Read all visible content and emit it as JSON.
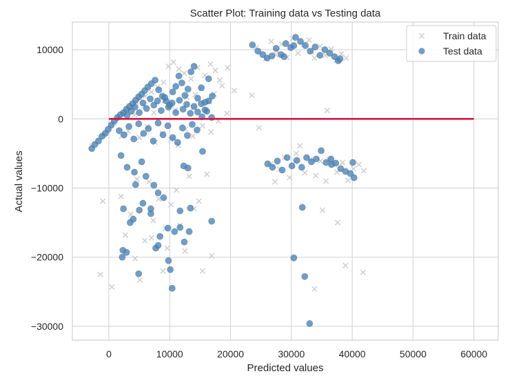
{
  "chart_data": {
    "type": "scatter",
    "title": "Scatter Plot: Training data vs Testing data",
    "xlabel": "Predicted values",
    "ylabel": "Actual values",
    "xlim": [
      -6000,
      64000
    ],
    "ylim": [
      -32000,
      14000
    ],
    "x_ticks": [
      0,
      10000,
      20000,
      30000,
      40000,
      50000,
      60000
    ],
    "y_ticks": [
      -30000,
      -20000,
      -10000,
      0,
      10000
    ],
    "x_tick_labels": [
      "0",
      "10000",
      "20000",
      "30000",
      "40000",
      "50000",
      "60000"
    ],
    "y_tick_labels": [
      "−30000",
      "−20000",
      "−10000",
      "0",
      "10000"
    ],
    "grid": true,
    "legend_position": "top-right",
    "reference_line": {
      "y": 0,
      "x_start": 0,
      "x_end": 60000,
      "color": "#dc143c"
    },
    "series": [
      {
        "name": "Train data",
        "marker": "x",
        "color": "#cccccc",
        "points": [
          [
            -2800,
            -3900
          ],
          [
            -1500,
            -2700
          ],
          [
            -300,
            -1800
          ],
          [
            800,
            -600
          ],
          [
            1500,
            200
          ],
          [
            2200,
            700
          ],
          [
            3000,
            1200
          ],
          [
            3800,
            1700
          ],
          [
            4500,
            2400
          ],
          [
            5200,
            2900
          ],
          [
            6000,
            3300
          ],
          [
            7000,
            3900
          ],
          [
            8000,
            4600
          ],
          [
            9000,
            5300
          ],
          [
            9800,
            7600
          ],
          [
            10600,
            8200
          ],
          [
            11500,
            7200
          ],
          [
            12400,
            6600
          ],
          [
            13500,
            5800
          ],
          [
            14600,
            7400
          ],
          [
            15800,
            6300
          ],
          [
            16700,
            7900
          ],
          [
            17500,
            7000
          ],
          [
            18200,
            5600
          ],
          [
            19500,
            7400
          ],
          [
            20600,
            4100
          ],
          [
            3200,
            -1800
          ],
          [
            5000,
            -2700
          ],
          [
            6300,
            -1100
          ],
          [
            7600,
            -3400
          ],
          [
            8800,
            -2100
          ],
          [
            10200,
            -3000
          ],
          [
            11400,
            -3800
          ],
          [
            12600,
            -1500
          ],
          [
            13800,
            -2500
          ],
          [
            15400,
            -1000
          ],
          [
            16800,
            -1900
          ],
          [
            18000,
            -300
          ],
          [
            19400,
            800
          ],
          [
            14200,
            3500
          ],
          [
            16500,
            2500
          ],
          [
            18600,
            4800
          ],
          [
            2100,
            -2500
          ],
          [
            4200,
            600
          ],
          [
            5800,
            1900
          ],
          [
            7400,
            900
          ],
          [
            9100,
            2600
          ],
          [
            10900,
            1300
          ],
          [
            12800,
            3100
          ],
          [
            13900,
            1600
          ],
          [
            15200,
            4400
          ],
          [
            17300,
            3600
          ],
          [
            -1000,
            -11900
          ],
          [
            -1400,
            -22500
          ],
          [
            500,
            -24300
          ],
          [
            2000,
            -11200
          ],
          [
            2700,
            -16800
          ],
          [
            3600,
            -13800
          ],
          [
            4300,
            -20200
          ],
          [
            5100,
            -23300
          ],
          [
            5900,
            -17600
          ],
          [
            6600,
            -9100
          ],
          [
            7300,
            -14700
          ],
          [
            8200,
            -11600
          ],
          [
            8900,
            -22000
          ],
          [
            9600,
            -18700
          ],
          [
            10200,
            -12400
          ],
          [
            11100,
            -10300
          ],
          [
            11700,
            -15400
          ],
          [
            12500,
            -19100
          ],
          [
            13200,
            -8300
          ],
          [
            14000,
            -13000
          ],
          [
            14800,
            -11900
          ],
          [
            15400,
            -22000
          ],
          [
            16100,
            -8000
          ],
          [
            16900,
            -19800
          ],
          [
            9300,
            -15900
          ],
          [
            4600,
            -8700
          ],
          [
            7000,
            -17200
          ],
          [
            23500,
            3400
          ],
          [
            24700,
            -1300
          ],
          [
            24200,
            10300
          ],
          [
            25800,
            8700
          ],
          [
            26700,
            11200
          ],
          [
            27600,
            9900
          ],
          [
            28400,
            10800
          ],
          [
            29300,
            8900
          ],
          [
            30200,
            11600
          ],
          [
            31100,
            9500
          ],
          [
            32000,
            10800
          ],
          [
            32900,
            11400
          ],
          [
            33800,
            8800
          ],
          [
            34700,
            10500
          ],
          [
            35600,
            9200
          ],
          [
            36500,
            10100
          ],
          [
            37400,
            8500
          ],
          [
            38200,
            9400
          ],
          [
            39000,
            8800
          ],
          [
            27400,
            9300
          ],
          [
            33300,
            9700
          ],
          [
            35900,
            1200
          ],
          [
            26600,
            -6500
          ],
          [
            27300,
            -9100
          ],
          [
            28100,
            -7300
          ],
          [
            28900,
            -5600
          ],
          [
            29700,
            -8500
          ],
          [
            30600,
            -6200
          ],
          [
            31400,
            -3900
          ],
          [
            32200,
            -7800
          ],
          [
            33100,
            -5900
          ],
          [
            34000,
            -8200
          ],
          [
            34800,
            -6100
          ],
          [
            35700,
            -9000
          ],
          [
            36600,
            -6400
          ],
          [
            37500,
            -7700
          ],
          [
            38400,
            -6300
          ],
          [
            39300,
            -8900
          ],
          [
            40200,
            -7200
          ],
          [
            41100,
            -6600
          ],
          [
            41900,
            -7500
          ],
          [
            35100,
            -13200
          ],
          [
            37600,
            -15000
          ],
          [
            38900,
            -21200
          ],
          [
            41800,
            -22200
          ],
          [
            33800,
            -24600
          ],
          [
            30800,
            -5000
          ],
          [
            36200,
            -5900
          ]
        ]
      },
      {
        "name": "Test data",
        "marker": "o",
        "color": "#4c82b4",
        "points": [
          [
            -2800,
            -4300
          ],
          [
            -2300,
            -3700
          ],
          [
            -1700,
            -3200
          ],
          [
            -1100,
            -2500
          ],
          [
            -600,
            -2100
          ],
          [
            -100,
            -1500
          ],
          [
            400,
            -900
          ],
          [
            900,
            -300
          ],
          [
            1400,
            200
          ],
          [
            1900,
            600
          ],
          [
            2400,
            900
          ],
          [
            2900,
            1400
          ],
          [
            3400,
            1800
          ],
          [
            3900,
            2200
          ],
          [
            4400,
            2700
          ],
          [
            4900,
            3200
          ],
          [
            5400,
            3600
          ],
          [
            5900,
            4100
          ],
          [
            6400,
            4600
          ],
          [
            7000,
            5100
          ],
          [
            7600,
            5600
          ],
          [
            8200,
            4200
          ],
          [
            8800,
            3300
          ],
          [
            9400,
            2600
          ],
          [
            10000,
            2000
          ],
          [
            10500,
            3900
          ],
          [
            11000,
            4700
          ],
          [
            11500,
            6200
          ],
          [
            12000,
            5200
          ],
          [
            12500,
            3400
          ],
          [
            13000,
            4300
          ],
          [
            13500,
            6800
          ],
          [
            14000,
            7600
          ],
          [
            14600,
            3000
          ],
          [
            15200,
            4500
          ],
          [
            15800,
            2400
          ],
          [
            16400,
            5800
          ],
          [
            17000,
            3300
          ],
          [
            1700,
            -1700
          ],
          [
            2500,
            -2300
          ],
          [
            3300,
            -1100
          ],
          [
            4100,
            -2900
          ],
          [
            4900,
            -700
          ],
          [
            5700,
            -2100
          ],
          [
            6500,
            -1400
          ],
          [
            7300,
            -3200
          ],
          [
            8100,
            -600
          ],
          [
            8900,
            -2300
          ],
          [
            9700,
            -1000
          ],
          [
            10500,
            -2700
          ],
          [
            11300,
            -3400
          ],
          [
            12100,
            -1300
          ],
          [
            12900,
            -2400
          ],
          [
            13700,
            -800
          ],
          [
            14500,
            -1600
          ],
          [
            15300,
            300
          ],
          [
            16100,
            1100
          ],
          [
            16900,
            200
          ],
          [
            3000,
            500
          ],
          [
            3700,
            1100
          ],
          [
            4300,
            1700
          ],
          [
            5000,
            900
          ],
          [
            5600,
            2300
          ],
          [
            6200,
            1500
          ],
          [
            6800,
            2900
          ],
          [
            7400,
            2000
          ],
          [
            8000,
            2600
          ],
          [
            8600,
            1200
          ],
          [
            9200,
            3100
          ],
          [
            9800,
            1700
          ],
          [
            10400,
            2300
          ],
          [
            11000,
            900
          ],
          [
            11600,
            2700
          ],
          [
            12200,
            1400
          ],
          [
            12800,
            2100
          ],
          [
            13400,
            800
          ],
          [
            14000,
            1800
          ],
          [
            14600,
            1000
          ],
          [
            15200,
            2200
          ],
          [
            15800,
            1300
          ],
          [
            16400,
            2600
          ],
          [
            2000,
            -5300
          ],
          [
            3000,
            -7000
          ],
          [
            4200,
            -7700
          ],
          [
            5400,
            -6200
          ],
          [
            2400,
            -13000
          ],
          [
            4000,
            -14500
          ],
          [
            3500,
            -15000
          ],
          [
            5000,
            -13200
          ],
          [
            5600,
            -12200
          ],
          [
            7400,
            -9600
          ],
          [
            8100,
            -10700
          ],
          [
            6900,
            -13700
          ],
          [
            9000,
            -11400
          ],
          [
            8400,
            -17000
          ],
          [
            9700,
            -15800
          ],
          [
            10800,
            -16300
          ],
          [
            11700,
            -13300
          ],
          [
            12300,
            -6800
          ],
          [
            13400,
            -12900
          ],
          [
            15400,
            -4700
          ],
          [
            13000,
            -7100
          ],
          [
            16900,
            -14800
          ],
          [
            6100,
            -8300
          ],
          [
            4400,
            -9500
          ],
          [
            2300,
            -19000
          ],
          [
            2900,
            -19300
          ],
          [
            2200,
            -20000
          ],
          [
            4900,
            -22400
          ],
          [
            7700,
            -18700
          ],
          [
            8100,
            -18300
          ],
          [
            9800,
            -20500
          ],
          [
            10100,
            -21800
          ],
          [
            10400,
            -24500
          ],
          [
            12400,
            -17800
          ],
          [
            11700,
            -15700
          ],
          [
            13200,
            -16300
          ],
          [
            6900,
            -13000
          ],
          [
            23600,
            10700
          ],
          [
            24500,
            9800
          ],
          [
            25300,
            9300
          ],
          [
            26000,
            8800
          ],
          [
            26800,
            9100
          ],
          [
            27500,
            10200
          ],
          [
            28300,
            9300
          ],
          [
            29100,
            10900
          ],
          [
            29900,
            10300
          ],
          [
            30700,
            11800
          ],
          [
            31500,
            11200
          ],
          [
            32300,
            10600
          ],
          [
            33100,
            9800
          ],
          [
            33900,
            10400
          ],
          [
            34700,
            9200
          ],
          [
            35500,
            10000
          ],
          [
            36300,
            9500
          ],
          [
            37100,
            9000
          ],
          [
            37700,
            8400
          ],
          [
            38000,
            8700
          ],
          [
            28800,
            9000
          ],
          [
            30400,
            10600
          ],
          [
            26100,
            -6500
          ],
          [
            26900,
            -7000
          ],
          [
            27700,
            -6100
          ],
          [
            28500,
            -7400
          ],
          [
            29300,
            -5600
          ],
          [
            30100,
            -6800
          ],
          [
            30900,
            -6000
          ],
          [
            31700,
            -7000
          ],
          [
            32500,
            -5600
          ],
          [
            33300,
            -6200
          ],
          [
            34100,
            -5800
          ],
          [
            34900,
            -4600
          ],
          [
            35700,
            -6300
          ],
          [
            36500,
            -5800
          ],
          [
            37300,
            -6400
          ],
          [
            38100,
            -7200
          ],
          [
            38900,
            -7600
          ],
          [
            39700,
            -7900
          ],
          [
            40300,
            -8500
          ],
          [
            40100,
            -6300
          ],
          [
            31800,
            -12800
          ],
          [
            30400,
            -20100
          ],
          [
            32200,
            -22800
          ],
          [
            33000,
            -29600
          ],
          [
            36600,
            -6600
          ]
        ]
      }
    ]
  }
}
